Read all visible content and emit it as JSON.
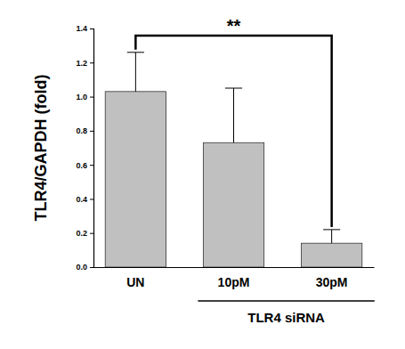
{
  "chart_data": {
    "type": "bar",
    "y_label": "TLR4/GAPDH (fold)",
    "categories": [
      "UN",
      "10pM",
      "30pM"
    ],
    "values": [
      1.03,
      0.73,
      0.14
    ],
    "errors": [
      0.23,
      0.32,
      0.08
    ],
    "color": "#c0c0c0",
    "ylim": [
      0,
      1.4
    ],
    "yticks": [
      {
        "value": 0,
        "label": "0.0"
      },
      0.2,
      0.4,
      0.6,
      0.8,
      {
        "value": 1,
        "label": "1.0"
      },
      1.2,
      1.4
    ],
    "grid": false,
    "annotations": [
      "**",
      "TLR4 siRNA"
    ]
  }
}
